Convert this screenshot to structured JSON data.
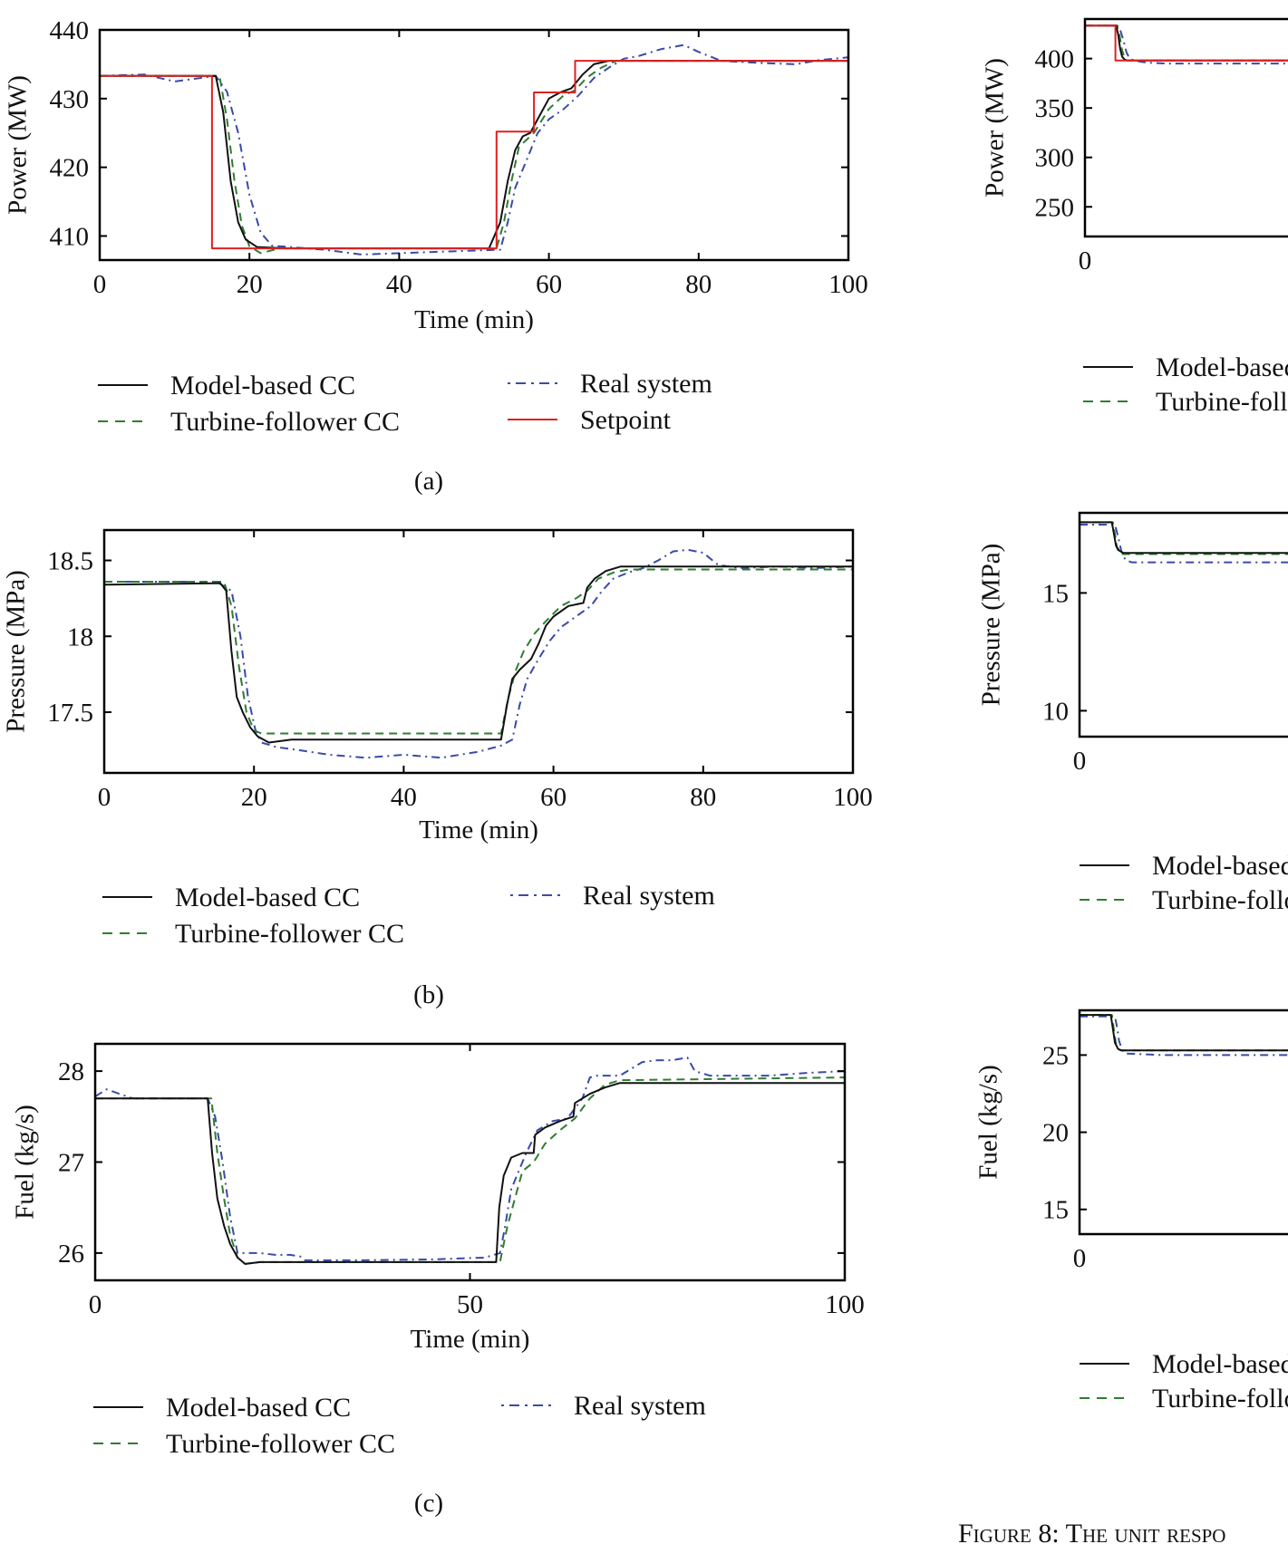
{
  "colors": {
    "model": "#111111",
    "turbine": "#2e7d32",
    "real": "#3a4aa8",
    "setpoint": "#e02020",
    "axis": "#000000"
  },
  "legend_labels": {
    "model": "Model-based CC",
    "turbine": "Turbine-follower CC",
    "real": "Real system",
    "setpoint": "Setpoint"
  },
  "caption": "Figure 8: The unit respo",
  "chart_data": [
    {
      "id": "a",
      "type": "line",
      "panel_label": "(a)",
      "xlabel": "Time (min)",
      "ylabel": "Power (MW)",
      "xlim": [
        0,
        100
      ],
      "ylim": [
        406.5,
        440
      ],
      "xticks": [
        "0",
        "20",
        "40",
        "60",
        "80",
        "100"
      ],
      "xtick_values": [
        0,
        20,
        40,
        60,
        80,
        100
      ],
      "yticks": [
        "440",
        "430",
        "420",
        "410"
      ],
      "ytick_values": [
        440,
        430,
        420,
        410
      ],
      "legend": [
        "model",
        "turbine",
        "real",
        "setpoint"
      ],
      "series": [
        {
          "key": "setpoint",
          "x": [
            0,
            15,
            15,
            53,
            53,
            58,
            58,
            63.5,
            63.5,
            100
          ],
          "y": [
            433.3,
            433.3,
            408.2,
            408.2,
            425.2,
            425.2,
            430.9,
            430.9,
            435.5,
            435.5
          ]
        },
        {
          "key": "model",
          "x": [
            0,
            15.5,
            16.5,
            17.5,
            18.5,
            19.5,
            21,
            25,
            52,
            53.5,
            54.5,
            55.5,
            56.5,
            57.5,
            59,
            60,
            61.5,
            63,
            64.5,
            66,
            68,
            100
          ],
          "y": [
            433.3,
            433.3,
            428,
            418,
            412,
            409.5,
            408.4,
            408.2,
            408.2,
            412,
            418,
            422.5,
            424.5,
            425,
            428,
            430,
            430.9,
            431.5,
            433.5,
            435,
            435.5,
            435.5
          ]
        },
        {
          "key": "turbine",
          "x": [
            0,
            16,
            17,
            18,
            19,
            20,
            21.5,
            24,
            53,
            54,
            55,
            56,
            58,
            60,
            62,
            63.5,
            65,
            67,
            69,
            100
          ],
          "y": [
            433.3,
            433.3,
            427,
            418,
            411.5,
            408.5,
            407.5,
            408.2,
            408.2,
            412,
            418,
            423,
            425,
            428.5,
            430.5,
            431.2,
            433,
            434.5,
            435.5,
            435.5
          ]
        },
        {
          "key": "real",
          "x": [
            0,
            6,
            10,
            15.5,
            17,
            18.5,
            20,
            21.5,
            23,
            30,
            35,
            40,
            48,
            53.5,
            54.5,
            55.5,
            57,
            58.5,
            60,
            62,
            64,
            66,
            68,
            70,
            72,
            75,
            78,
            80,
            83,
            88,
            93,
            96,
            100
          ],
          "y": [
            433.3,
            433.5,
            432.5,
            433.3,
            431,
            425,
            416,
            410.5,
            408.6,
            408.0,
            407.3,
            407.5,
            407.8,
            408,
            412,
            417,
            421,
            425,
            427,
            428.5,
            430.5,
            433,
            434.5,
            435.8,
            436.2,
            437.2,
            437.8,
            436.8,
            435.5,
            435.2,
            435.0,
            435.6,
            436
          ]
        }
      ]
    },
    {
      "id": "b",
      "type": "line",
      "panel_label": "(b)",
      "xlabel": "Time (min)",
      "ylabel": "Pressure (MPa)",
      "xlim": [
        0,
        100
      ],
      "ylim": [
        17.1,
        18.7
      ],
      "xticks": [
        "0",
        "20",
        "40",
        "60",
        "80",
        "100"
      ],
      "xtick_values": [
        0,
        20,
        40,
        60,
        80,
        100
      ],
      "yticks": [
        "18.5",
        "18",
        "17.5"
      ],
      "ytick_values": [
        18.5,
        18,
        17.5
      ],
      "legend": [
        "model",
        "turbine",
        "real"
      ],
      "series": [
        {
          "key": "model",
          "x": [
            0,
            15.5,
            16.3,
            17,
            17.7,
            18.5,
            19.5,
            20.5,
            22,
            25,
            53,
            53.8,
            54.5,
            55.5,
            57,
            58,
            59,
            60,
            62,
            64,
            64.5,
            65.5,
            67,
            69,
            100
          ],
          "y": [
            18.34,
            18.35,
            18.3,
            17.9,
            17.6,
            17.5,
            17.4,
            17.34,
            17.3,
            17.32,
            17.32,
            17.55,
            17.72,
            17.78,
            17.85,
            17.95,
            18.07,
            18.13,
            18.2,
            18.22,
            18.32,
            18.38,
            18.43,
            18.46,
            18.46
          ]
        },
        {
          "key": "turbine",
          "x": [
            0,
            16,
            17,
            18,
            19,
            20,
            21,
            23,
            53,
            54,
            55,
            56,
            57.5,
            59,
            61,
            63,
            64.5,
            66,
            68,
            70,
            100
          ],
          "y": [
            18.36,
            18.36,
            18.2,
            17.8,
            17.5,
            17.38,
            17.36,
            17.36,
            17.36,
            17.6,
            17.78,
            17.9,
            18.02,
            18.1,
            18.2,
            18.25,
            18.3,
            18.38,
            18.42,
            18.44,
            18.44
          ]
        },
        {
          "key": "real",
          "x": [
            0,
            15,
            17,
            18.2,
            19.2,
            20.2,
            21,
            23,
            26,
            30,
            35,
            40,
            45,
            50,
            53,
            54.5,
            55.5,
            56.5,
            58,
            59.5,
            61,
            63,
            65,
            66.5,
            68,
            70,
            72,
            74,
            76,
            78,
            80,
            82,
            85,
            90,
            95,
            100
          ],
          "y": [
            18.36,
            18.36,
            18.3,
            18.0,
            17.6,
            17.38,
            17.3,
            17.27,
            17.25,
            17.22,
            17.2,
            17.22,
            17.2,
            17.24,
            17.28,
            17.32,
            17.55,
            17.72,
            17.85,
            17.97,
            18.06,
            18.13,
            18.2,
            18.3,
            18.38,
            18.42,
            18.45,
            18.5,
            18.56,
            18.57,
            18.55,
            18.47,
            18.45,
            18.46,
            18.45,
            18.46
          ]
        }
      ]
    },
    {
      "id": "c",
      "type": "line",
      "panel_label": "(c)",
      "xlabel": "Time (min)",
      "ylabel": "Fuel (kg/s)",
      "xlim": [
        0,
        100
      ],
      "ylim": [
        25.7,
        28.3
      ],
      "xticks": [
        "0",
        "50",
        "100"
      ],
      "xtick_values": [
        0,
        50,
        100
      ],
      "yticks": [
        "28",
        "27",
        "26"
      ],
      "ytick_values": [
        28,
        27,
        26
      ],
      "legend": [
        "model",
        "turbine",
        "real"
      ],
      "series": [
        {
          "key": "model",
          "x": [
            0,
            15,
            15.6,
            16.3,
            17.2,
            18,
            19,
            20,
            22,
            53.5,
            53.9,
            54.5,
            55.5,
            57,
            58.5,
            58.7,
            60,
            62,
            63.8,
            64,
            66,
            68,
            70,
            100
          ],
          "y": [
            27.7,
            27.7,
            27.1,
            26.6,
            26.3,
            26.1,
            25.95,
            25.88,
            25.9,
            25.9,
            26.5,
            26.85,
            27.05,
            27.1,
            27.1,
            27.3,
            27.38,
            27.45,
            27.5,
            27.65,
            27.75,
            27.82,
            27.87,
            27.87
          ]
        },
        {
          "key": "turbine",
          "x": [
            0,
            15.5,
            16.3,
            17.2,
            18,
            19,
            20,
            22,
            54,
            55,
            56,
            57,
            58.5,
            60,
            62,
            64,
            66,
            68,
            70,
            100
          ],
          "y": [
            27.7,
            27.7,
            27.1,
            26.6,
            26.2,
            25.95,
            25.88,
            25.9,
            25.9,
            26.3,
            26.6,
            26.9,
            27.0,
            27.2,
            27.35,
            27.48,
            27.7,
            27.85,
            27.9,
            27.93
          ]
        },
        {
          "key": "real",
          "x": [
            0,
            1.5,
            5,
            15,
            16,
            17,
            18,
            19,
            20,
            22,
            24,
            26,
            27.5,
            28,
            35,
            45,
            52,
            54,
            54.7,
            55.5,
            56.5,
            57.5,
            59,
            61,
            63,
            65,
            66,
            67,
            70,
            73,
            75,
            77,
            79,
            80,
            82,
            85,
            90,
            95,
            100
          ],
          "y": [
            27.72,
            27.8,
            27.7,
            27.7,
            27.5,
            27.0,
            26.4,
            26.0,
            26.0,
            26.0,
            25.98,
            25.98,
            25.96,
            25.92,
            25.92,
            25.93,
            25.95,
            26.0,
            26.3,
            26.7,
            26.9,
            27.1,
            27.35,
            27.45,
            27.48,
            27.7,
            27.93,
            27.95,
            27.95,
            28.1,
            28.12,
            28.12,
            28.15,
            28.0,
            27.95,
            27.95,
            27.95,
            27.98,
            28.0
          ]
        }
      ]
    },
    {
      "id": "d",
      "type": "line",
      "panel_label": "",
      "xlabel": "",
      "ylabel": "Power (MW)",
      "xlim": [
        0,
        100
      ],
      "ylim": [
        220,
        440
      ],
      "xticks": [
        "0"
      ],
      "xtick_values": [
        0
      ],
      "yticks": [
        "400",
        "350",
        "300",
        "250"
      ],
      "ytick_values": [
        400,
        350,
        300,
        250
      ],
      "legend": [
        "model",
        "turbine"
      ],
      "series": [
        {
          "key": "setpoint",
          "x": [
            0,
            15,
            15,
            100
          ],
          "y": [
            433.3,
            433.3,
            398,
            398
          ]
        },
        {
          "key": "model",
          "x": [
            0,
            15.3,
            16.3,
            17.3,
            18.3,
            19.5,
            21,
            100
          ],
          "y": [
            433.3,
            433.3,
            425,
            410,
            402,
            399,
            398,
            398
          ]
        },
        {
          "key": "turbine",
          "x": [
            0,
            15.8,
            17,
            18.2,
            19.4,
            20.5,
            22,
            100
          ],
          "y": [
            433.3,
            433.3,
            424,
            409,
            401,
            398,
            398,
            398
          ]
        },
        {
          "key": "real",
          "x": [
            0,
            16,
            17.5,
            19,
            20.5,
            22,
            24,
            30,
            40,
            100
          ],
          "y": [
            433.3,
            433.3,
            428,
            418,
            406,
            400,
            398,
            396,
            395,
            395
          ]
        }
      ]
    },
    {
      "id": "e",
      "type": "line",
      "panel_label": "",
      "xlabel": "",
      "ylabel": "Pressure (MPa)",
      "xlim": [
        0,
        100
      ],
      "ylim": [
        8.9,
        18.4
      ],
      "xticks": [
        "0"
      ],
      "xtick_values": [
        0
      ],
      "yticks": [
        "15",
        "10"
      ],
      "ytick_values": [
        15,
        10
      ],
      "legend": [
        "model",
        "turbine"
      ],
      "series": [
        {
          "key": "model",
          "x": [
            0,
            15.5,
            16.5,
            17.5,
            19,
            21,
            100
          ],
          "y": [
            18.0,
            18.0,
            17.5,
            17.0,
            16.8,
            16.7,
            16.7
          ]
        },
        {
          "key": "turbine",
          "x": [
            0,
            16,
            17,
            18,
            19.5,
            21,
            100
          ],
          "y": [
            18.0,
            18.0,
            17.5,
            16.9,
            16.65,
            16.65,
            16.65
          ]
        },
        {
          "key": "real",
          "x": [
            0,
            17,
            18.5,
            20,
            22,
            25,
            40,
            100
          ],
          "y": [
            17.9,
            17.9,
            17.4,
            16.8,
            16.4,
            16.3,
            16.3,
            16.3
          ]
        }
      ]
    },
    {
      "id": "f",
      "type": "line",
      "panel_label": "",
      "xlabel": "",
      "ylabel": "Fuel (kg/s)",
      "xlim": [
        0,
        100
      ],
      "ylim": [
        13.4,
        27.9
      ],
      "xticks": [
        "0"
      ],
      "xtick_values": [
        0
      ],
      "yticks": [
        "25",
        "20",
        "15"
      ],
      "ytick_values": [
        25,
        20,
        15
      ],
      "legend": [
        "model",
        "turbine"
      ],
      "series": [
        {
          "key": "model",
          "x": [
            0,
            15,
            16,
            17,
            18.5,
            20,
            100
          ],
          "y": [
            27.6,
            27.6,
            26.7,
            25.8,
            25.4,
            25.3,
            25.3
          ]
        },
        {
          "key": "turbine",
          "x": [
            0,
            15.5,
            16.5,
            17.5,
            19,
            20.5,
            100
          ],
          "y": [
            27.6,
            27.6,
            26.6,
            25.7,
            25.35,
            25.3,
            25.3
          ]
        },
        {
          "key": "real",
          "x": [
            0,
            17,
            18,
            19,
            20.5,
            22,
            40,
            100
          ],
          "y": [
            27.5,
            27.5,
            26.8,
            25.9,
            25.3,
            25.1,
            25.0,
            25.0
          ]
        }
      ]
    }
  ]
}
